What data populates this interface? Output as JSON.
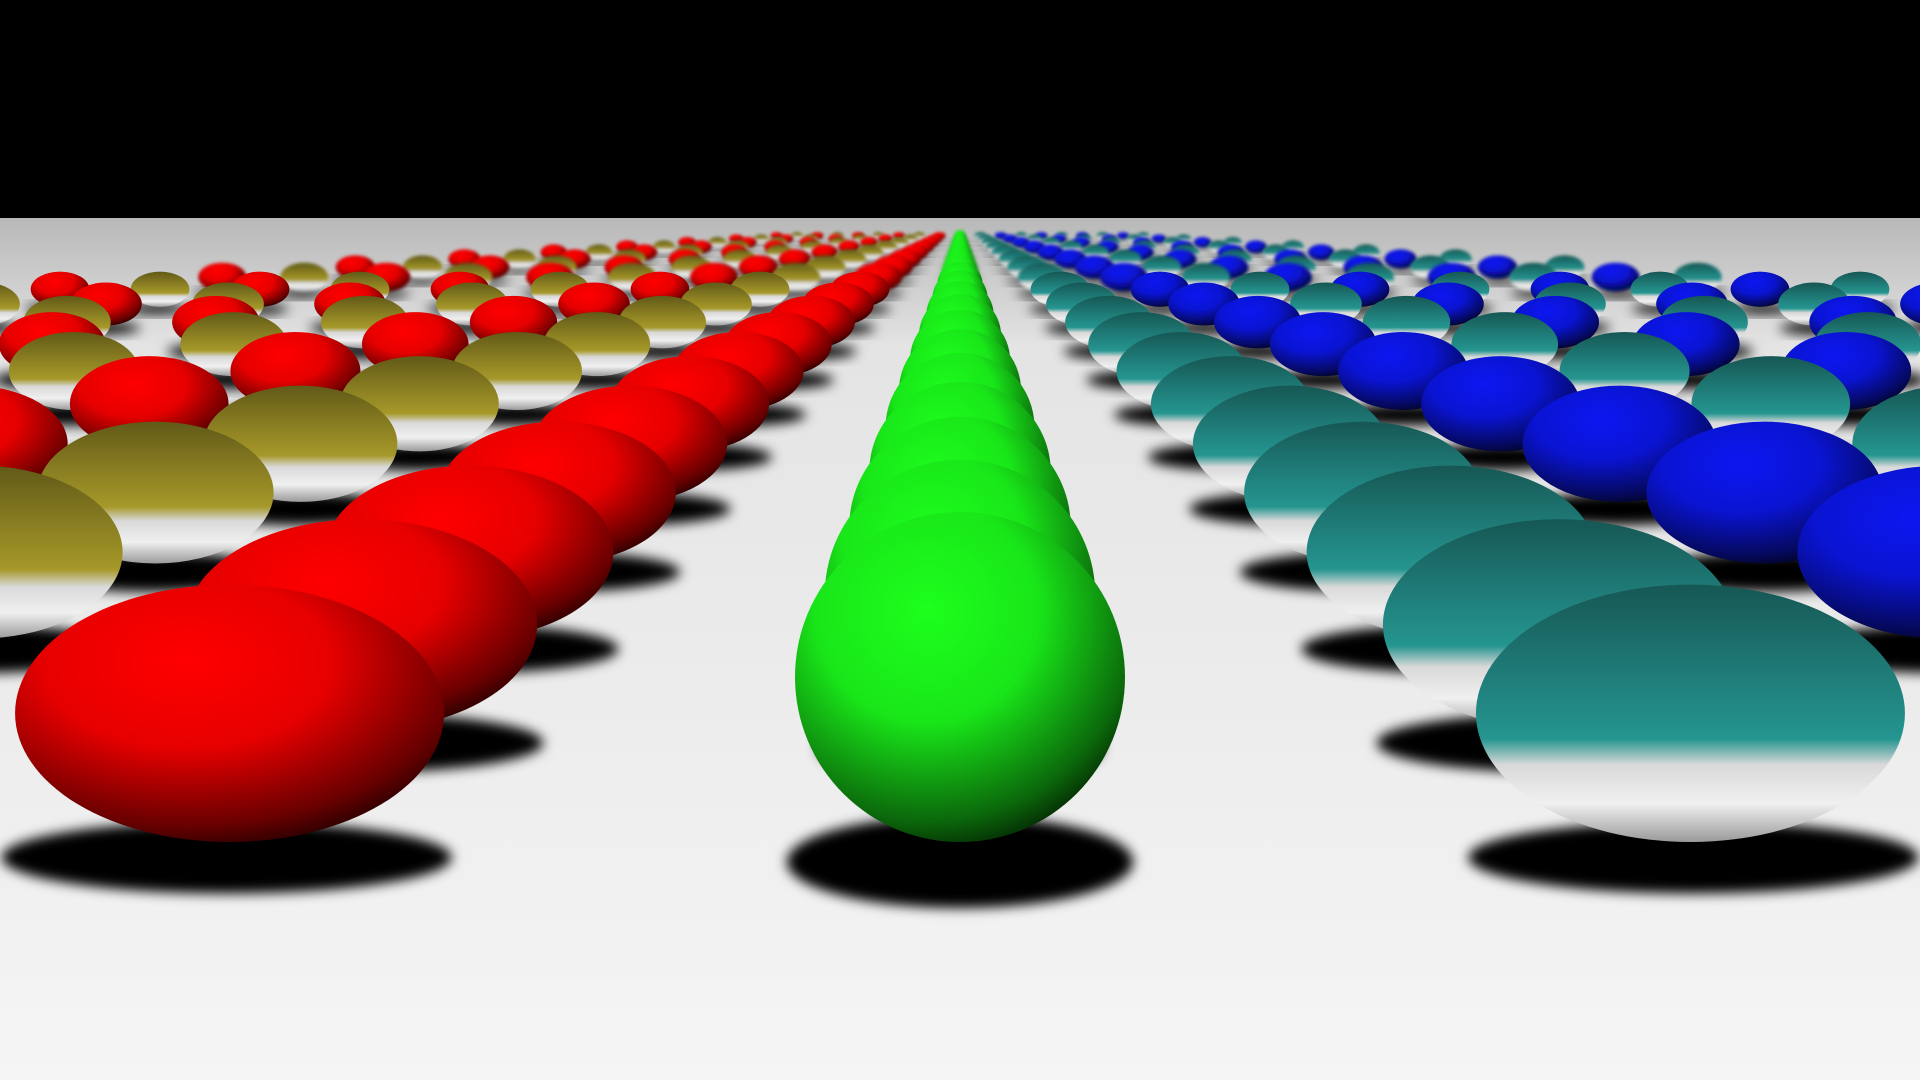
{
  "scene": {
    "description_kind": "ray-traced render",
    "sky_color": "#000000",
    "floor_color": "#f2f2f2",
    "shadow_color": "#000000",
    "sphere_palette": {
      "red": "#e60000",
      "green": "#19e619",
      "blue": "#0a14d2",
      "gold_mirror": "#8a7f22",
      "teal_mirror": "#1f7c78"
    },
    "row_pattern_left": [
      "red",
      "gold_mirror",
      "red",
      "gold_mirror"
    ],
    "row_pattern_center": [
      "green"
    ],
    "row_pattern_right": [
      "teal_mirror",
      "blue",
      "teal_mirror",
      "blue"
    ]
  }
}
